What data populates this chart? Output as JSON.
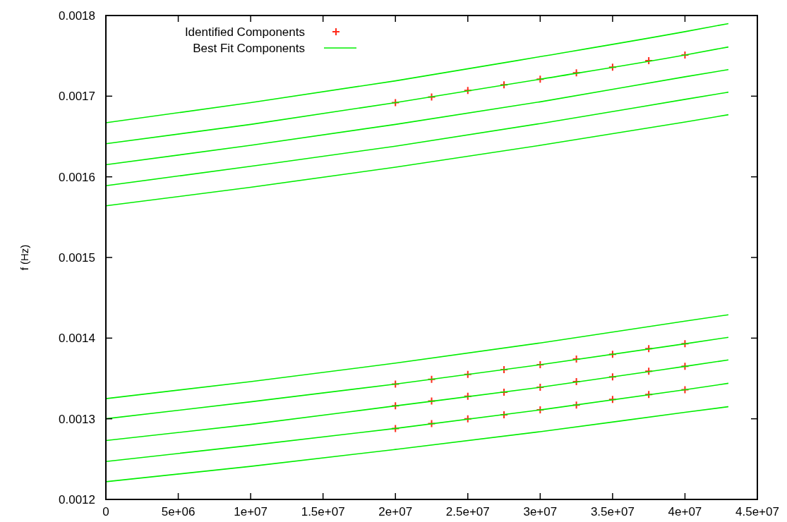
{
  "chart_data": {
    "type": "line",
    "ylabel": "f (Hz)",
    "xlim": [
      0,
      45000000
    ],
    "ylim": [
      0.0012,
      0.0018
    ],
    "xticks": [
      0,
      {
        "value": 5000000,
        "label": "5e+06"
      },
      {
        "value": 10000000,
        "label": "1e+07"
      },
      {
        "value": 15000000,
        "label": "1.5e+07"
      },
      {
        "value": 20000000,
        "label": "2e+07"
      },
      {
        "value": 25000000,
        "label": "2.5e+07"
      },
      {
        "value": 30000000,
        "label": "3e+07"
      },
      {
        "value": 35000000,
        "label": "3.5e+07"
      },
      {
        "value": 40000000,
        "label": "4e+07"
      },
      {
        "value": 45000000,
        "label": "4.5e+07"
      }
    ],
    "yticks": [
      0.0012,
      0.0013,
      0.0014,
      0.0015,
      0.0016,
      0.0017,
      0.0018
    ],
    "grid": false,
    "legend": "top left",
    "series": [
      {
        "name": "Identified Components",
        "type": "scatter",
        "marker": "cross",
        "color": "#ff2a1a",
        "x": [
          20000000,
          22500000,
          25000000,
          27500000,
          30000000,
          32500000,
          35000000,
          37500000,
          40000000,
          20000000,
          22500000,
          25000000,
          27500000,
          30000000,
          32500000,
          35000000,
          37500000,
          40000000,
          20000000,
          22500000,
          25000000,
          27500000,
          30000000,
          32500000,
          35000000,
          37500000,
          40000000,
          20000000,
          22500000,
          25000000,
          27500000,
          30000000,
          32500000,
          35000000,
          37500000,
          40000000
        ],
        "values": [
          0.001692,
          0.001699,
          0.001707,
          0.001714,
          0.001721,
          0.001729,
          0.001736,
          0.001744,
          0.001751,
          0.001343,
          0.001349,
          0.001355,
          0.001361,
          0.001367,
          0.001374,
          0.00138,
          0.001387,
          0.001393,
          0.001316,
          0.001322,
          0.001328,
          0.001333,
          0.001339,
          0.001346,
          0.001352,
          0.001359,
          0.001365,
          0.001288,
          0.001294,
          0.0013,
          0.001305,
          0.001311,
          0.001317,
          0.001324,
          0.00133,
          0.001336
        ]
      },
      {
        "name": "Best Fit Components",
        "color": "#00ee00",
        "x": [
          0,
          10000000,
          20000000,
          30000000,
          40000000,
          43000000
        ],
        "values": [
          0.001667,
          0.001692,
          0.001719,
          0.001749,
          0.00178,
          0.00179
        ]
      },
      {
        "color": "#00ee00",
        "x": [
          0,
          10000000,
          20000000,
          30000000,
          40000000,
          43000000
        ],
        "values": [
          0.001641,
          0.001665,
          0.001692,
          0.001721,
          0.001751,
          0.001761
        ]
      },
      {
        "color": "#00ee00",
        "x": [
          0,
          10000000,
          20000000,
          30000000,
          40000000,
          43000000
        ],
        "values": [
          0.001615,
          0.001639,
          0.001665,
          0.001693,
          0.001724,
          0.001733
        ]
      },
      {
        "color": "#00ee00",
        "x": [
          0,
          10000000,
          20000000,
          30000000,
          40000000,
          43000000
        ],
        "values": [
          0.001589,
          0.001613,
          0.001638,
          0.001666,
          0.001696,
          0.001705
        ]
      },
      {
        "color": "#00ee00",
        "x": [
          0,
          10000000,
          20000000,
          30000000,
          40000000,
          43000000
        ],
        "values": [
          0.001564,
          0.001587,
          0.001612,
          0.001639,
          0.001668,
          0.001677
        ]
      },
      {
        "color": "#00ee00",
        "x": [
          0,
          10000000,
          20000000,
          30000000,
          40000000,
          43000000
        ],
        "values": [
          0.001325,
          0.001346,
          0.001369,
          0.001394,
          0.001421,
          0.001429
        ]
      },
      {
        "color": "#00ee00",
        "x": [
          0,
          10000000,
          20000000,
          30000000,
          40000000,
          43000000
        ],
        "values": [
          0.0013,
          0.001321,
          0.001343,
          0.001367,
          0.001393,
          0.001401
        ]
      },
      {
        "color": "#00ee00",
        "x": [
          0,
          10000000,
          20000000,
          30000000,
          40000000,
          43000000
        ],
        "values": [
          0.001273,
          0.001293,
          0.001316,
          0.001339,
          0.001365,
          0.001373
        ]
      },
      {
        "color": "#00ee00",
        "x": [
          0,
          10000000,
          20000000,
          30000000,
          40000000,
          43000000
        ],
        "values": [
          0.001247,
          0.001267,
          0.001288,
          0.001311,
          0.001336,
          0.001344
        ]
      },
      {
        "color": "#00ee00",
        "x": [
          0,
          10000000,
          20000000,
          30000000,
          40000000,
          43000000
        ],
        "values": [
          0.001222,
          0.001241,
          0.001262,
          0.001284,
          0.001308,
          0.001315
        ]
      }
    ]
  }
}
